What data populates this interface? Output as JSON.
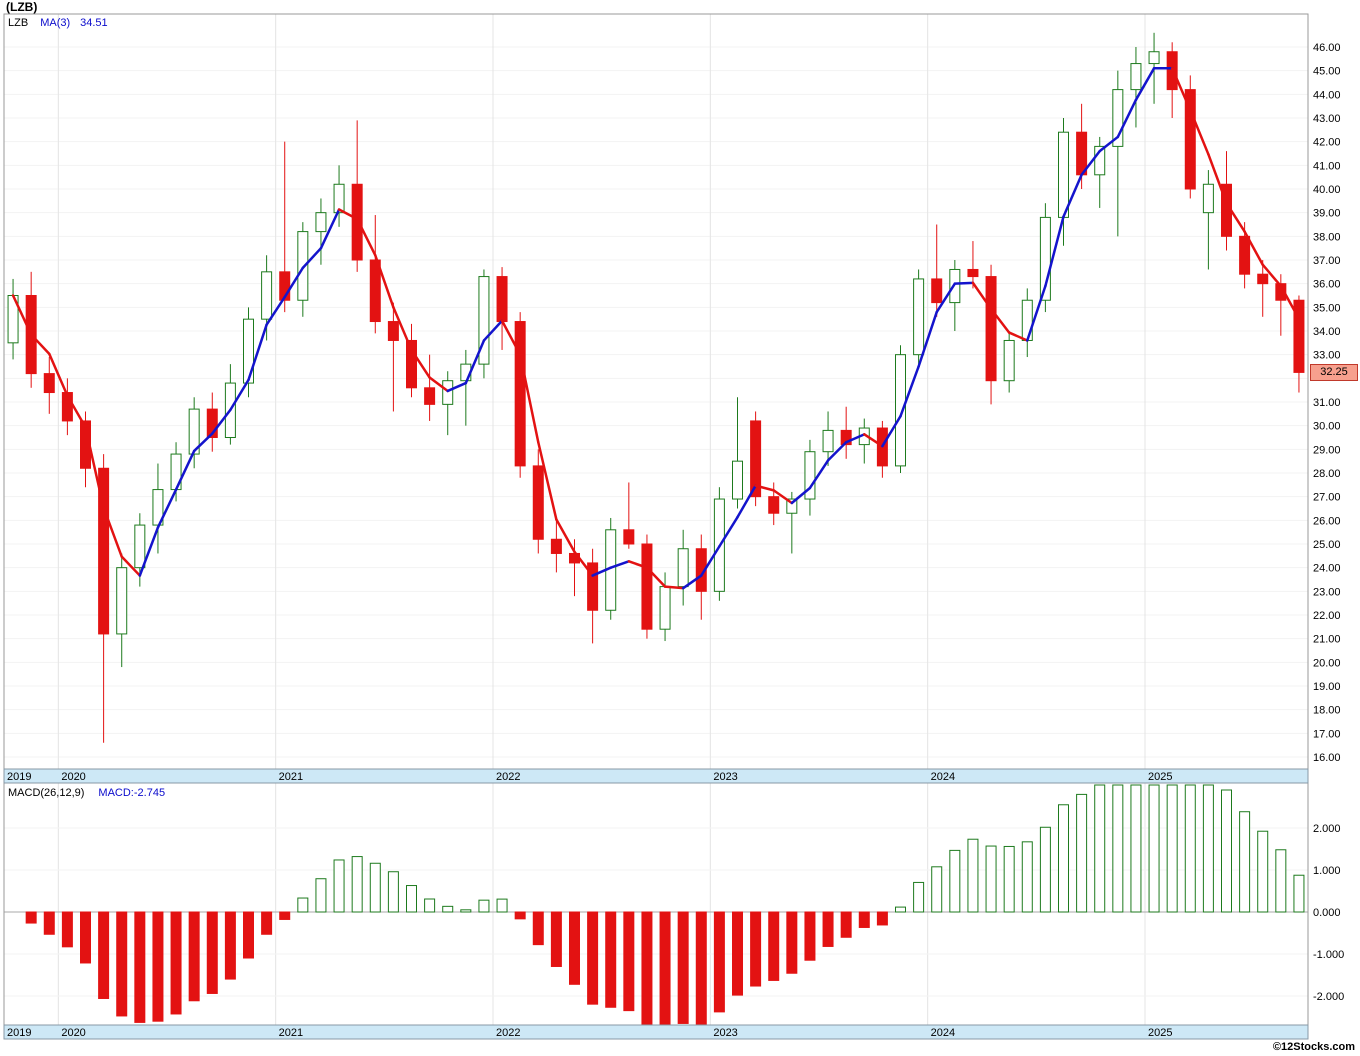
{
  "header": {
    "title": "(LZB)",
    "legend": {
      "symbol": "LZB",
      "ma_label": "MA(3)",
      "ma_value": "34.51"
    }
  },
  "price_panel": {
    "last_price_label": "32.25",
    "axis": {
      "min": 16,
      "max": 46,
      "step": 1,
      "label_replaced_by_price_tag": 32
    }
  },
  "macd_panel": {
    "indicator_label": "MACD(26,12,9)",
    "value_label": "MACD:-2.745",
    "last_value": -2.745,
    "axis_ticks": [
      "2.000",
      "1.000",
      "0.000",
      "-1.000",
      "-2.000"
    ],
    "tick_values": [
      2,
      1,
      0,
      -1,
      -2
    ]
  },
  "timeline": {
    "years": [
      "2019",
      "2020",
      "2021",
      "2022",
      "2023",
      "2024",
      "2025"
    ]
  },
  "footer": {
    "credit": "©12Stocks.com"
  },
  "colors": {
    "up_green": "#1d7a1d",
    "down_red": "#e31212",
    "ma_blue": "#1414cc",
    "ma_red": "#e31212",
    "legend_blue": "#0b0bcc",
    "strip_blue": "#cde8f6",
    "strip_border": "#8899a6",
    "panel_border": "#999999",
    "grid_light": "#f3f3f3",
    "grid_year": "#e4e4e4",
    "zero_line": "#aaaaaa",
    "price_tag_bg": "#f7a08e",
    "price_tag_border": "#c0392b"
  },
  "chart_data": [
    {
      "type": "candlestick",
      "title": "(LZB)",
      "symbol": "LZB",
      "interval": "monthly",
      "ylabel": "Price",
      "ylim": [
        16,
        46
      ],
      "overlay": {
        "name": "MA(3)",
        "window": 3,
        "last_value": 34.51
      },
      "columns": [
        "date",
        "open",
        "high",
        "low",
        "close"
      ],
      "candles": [
        [
          "2019-10",
          33.5,
          36.2,
          32.8,
          35.5
        ],
        [
          "2019-11",
          35.5,
          36.5,
          31.6,
          32.2
        ],
        [
          "2019-12",
          32.2,
          32.9,
          30.5,
          31.4
        ],
        [
          "2020-01",
          31.4,
          32.0,
          29.6,
          30.2
        ],
        [
          "2020-02",
          30.2,
          30.6,
          27.4,
          28.2
        ],
        [
          "2020-03",
          28.2,
          28.8,
          16.6,
          21.2
        ],
        [
          "2020-04",
          21.2,
          24.6,
          19.8,
          24.0
        ],
        [
          "2020-05",
          24.0,
          26.3,
          23.2,
          25.8
        ],
        [
          "2020-06",
          25.8,
          28.4,
          24.6,
          27.3
        ],
        [
          "2020-07",
          27.3,
          29.3,
          26.8,
          28.8
        ],
        [
          "2020-08",
          28.8,
          31.2,
          28.2,
          30.7
        ],
        [
          "2020-09",
          30.7,
          31.4,
          28.9,
          29.5
        ],
        [
          "2020-10",
          29.5,
          32.6,
          29.2,
          31.8
        ],
        [
          "2020-11",
          31.8,
          35.0,
          31.2,
          34.5
        ],
        [
          "2020-12",
          34.5,
          37.2,
          33.6,
          36.5
        ],
        [
          "2021-01",
          36.5,
          42.0,
          34.8,
          35.3
        ],
        [
          "2021-02",
          35.3,
          38.6,
          34.6,
          38.2
        ],
        [
          "2021-03",
          38.2,
          39.6,
          36.8,
          39.0
        ],
        [
          "2021-04",
          39.0,
          41.0,
          38.4,
          40.2
        ],
        [
          "2021-05",
          40.2,
          42.9,
          36.5,
          37.0
        ],
        [
          "2021-06",
          37.0,
          38.9,
          33.9,
          34.4
        ],
        [
          "2021-07",
          34.4,
          35.2,
          30.6,
          33.6
        ],
        [
          "2021-08",
          33.6,
          34.3,
          31.2,
          31.6
        ],
        [
          "2021-09",
          31.6,
          33.0,
          30.2,
          30.9
        ],
        [
          "2021-10",
          30.9,
          32.3,
          29.6,
          31.9
        ],
        [
          "2021-11",
          31.9,
          33.2,
          30.0,
          32.6
        ],
        [
          "2021-12",
          32.6,
          36.6,
          32.0,
          36.3
        ],
        [
          "2022-01",
          36.3,
          36.7,
          33.2,
          34.4
        ],
        [
          "2022-02",
          34.4,
          34.8,
          27.8,
          28.3
        ],
        [
          "2022-03",
          28.3,
          29.0,
          24.6,
          25.2
        ],
        [
          "2022-04",
          25.2,
          26.0,
          23.8,
          24.6
        ],
        [
          "2022-05",
          24.6,
          25.2,
          22.8,
          24.2
        ],
        [
          "2022-06",
          24.2,
          24.8,
          20.8,
          22.2
        ],
        [
          "2022-07",
          22.2,
          26.1,
          21.8,
          25.6
        ],
        [
          "2022-08",
          25.6,
          27.6,
          24.8,
          25.0
        ],
        [
          "2022-09",
          25.0,
          25.4,
          21.0,
          21.4
        ],
        [
          "2022-10",
          21.4,
          23.8,
          20.9,
          23.2
        ],
        [
          "2022-11",
          23.2,
          25.6,
          22.4,
          24.8
        ],
        [
          "2022-12",
          24.8,
          25.4,
          21.8,
          23.0
        ],
        [
          "2023-01",
          23.0,
          27.4,
          22.6,
          26.9
        ],
        [
          "2023-02",
          26.9,
          31.2,
          26.5,
          28.5
        ],
        [
          "2023-03",
          30.2,
          30.6,
          26.6,
          27.0
        ],
        [
          "2023-04",
          27.0,
          27.6,
          25.8,
          26.3
        ],
        [
          "2023-05",
          26.3,
          27.2,
          24.6,
          26.9
        ],
        [
          "2023-06",
          26.9,
          29.4,
          26.2,
          28.9
        ],
        [
          "2023-07",
          28.9,
          30.6,
          28.3,
          29.8
        ],
        [
          "2023-08",
          29.8,
          30.8,
          28.6,
          29.2
        ],
        [
          "2023-09",
          29.2,
          30.3,
          28.4,
          29.9
        ],
        [
          "2023-10",
          29.9,
          30.2,
          27.8,
          28.3
        ],
        [
          "2023-11",
          28.3,
          33.4,
          28.0,
          33.0
        ],
        [
          "2023-12",
          33.0,
          36.6,
          32.4,
          36.2
        ],
        [
          "2024-01",
          36.2,
          38.5,
          34.6,
          35.2
        ],
        [
          "2024-02",
          35.2,
          37.0,
          34.0,
          36.6
        ],
        [
          "2024-03",
          36.6,
          37.8,
          35.8,
          36.3
        ],
        [
          "2024-04",
          36.3,
          36.8,
          30.9,
          31.9
        ],
        [
          "2024-05",
          31.9,
          34.0,
          31.4,
          33.6
        ],
        [
          "2024-06",
          33.6,
          35.8,
          32.9,
          35.3
        ],
        [
          "2024-07",
          35.3,
          39.4,
          34.8,
          38.8
        ],
        [
          "2024-08",
          38.8,
          43.0,
          37.6,
          42.4
        ],
        [
          "2024-09",
          42.4,
          43.6,
          40.0,
          40.6
        ],
        [
          "2024-10",
          40.6,
          42.2,
          39.2,
          41.8
        ],
        [
          "2024-11",
          41.8,
          45.0,
          38.0,
          44.2
        ],
        [
          "2024-12",
          44.2,
          46.0,
          42.6,
          45.3
        ],
        [
          "2025-01",
          45.3,
          46.6,
          43.6,
          45.8
        ],
        [
          "2025-02",
          45.8,
          46.2,
          43.0,
          44.2
        ],
        [
          "2025-03",
          44.2,
          44.8,
          39.6,
          40.0
        ],
        [
          "2025-04",
          39.0,
          40.8,
          36.6,
          40.2
        ],
        [
          "2025-05",
          40.2,
          41.6,
          37.4,
          38.0
        ],
        [
          "2025-06",
          38.0,
          38.6,
          35.8,
          36.4
        ],
        [
          "2025-07",
          36.4,
          37.0,
          34.6,
          36.0
        ],
        [
          "2025-08",
          36.0,
          36.4,
          33.8,
          35.3
        ],
        [
          "2025-09",
          35.3,
          35.5,
          31.4,
          32.25
        ]
      ]
    },
    {
      "type": "bar",
      "title": "MACD(26,12,9)",
      "derived_from": "closes of candlestick panel",
      "params": {
        "fast": 12,
        "slow": 26,
        "signal": 9
      },
      "last_value": -2.745,
      "ylim": [
        -2.9,
        2.6
      ],
      "tick_values": [
        2,
        1,
        0,
        -1,
        -2
      ]
    }
  ]
}
